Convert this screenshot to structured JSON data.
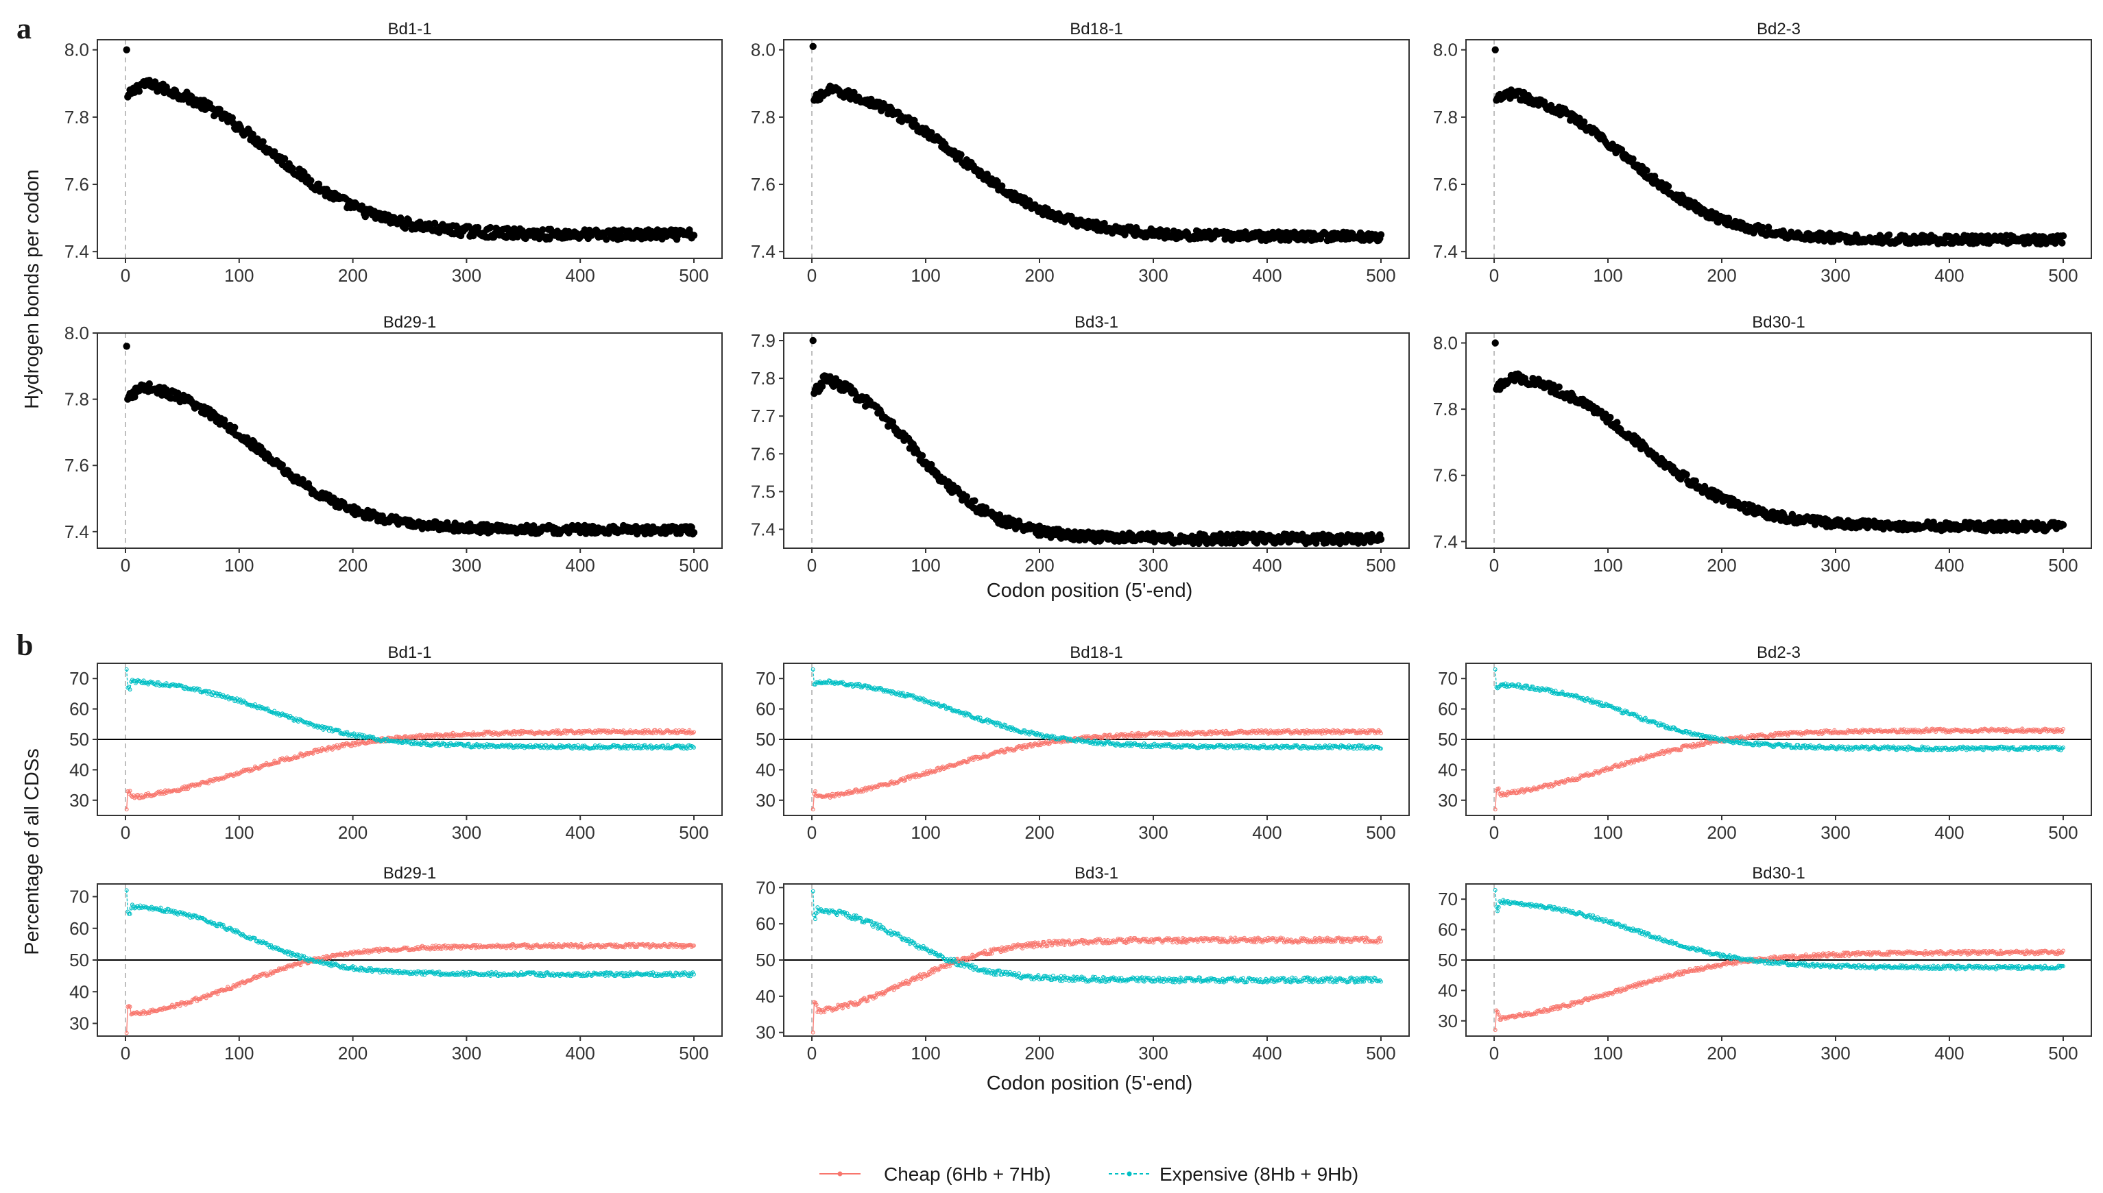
{
  "figure": {
    "panel_a_letter": "a",
    "panel_b_letter": "b",
    "panel_a_ylabel": "Hydrogen bonds per codon",
    "panel_b_ylabel": "Percentage of all CDSs",
    "xlabel": "Codon position (5'-end)"
  },
  "colors": {
    "points_a": "#000000",
    "cheap": "#F8766D",
    "expensive": "#00BFC4",
    "reference_line": "#000000",
    "dashed_line": "#BEBEBE",
    "frame": "#333333"
  },
  "legend": {
    "cheap_label": "Cheap (6Hb + 7Hb)",
    "expensive_label": "Expensive (8Hb + 9Hb)"
  },
  "chart_data": [
    {
      "panel": "a",
      "title": "Bd1-1",
      "type": "scatter",
      "x_range": [
        0,
        500
      ],
      "xticks": [
        0,
        100,
        200,
        300,
        400,
        500
      ],
      "ylim": [
        7.38,
        8.03
      ],
      "yticks": [
        7.4,
        7.6,
        7.8,
        8.0
      ],
      "ytick_labels": [
        "7.4",
        "7.6",
        "7.8",
        "8.0"
      ],
      "curve": {
        "start": 8.0,
        "second": 7.86,
        "peak": 7.9,
        "peak_x": 15,
        "plateau": 7.45,
        "mid": 130,
        "width": 45,
        "noise": 0.015
      },
      "dashed_x": 0
    },
    {
      "panel": "a",
      "title": "Bd18-1",
      "type": "scatter",
      "x_range": [
        0,
        500
      ],
      "xticks": [
        0,
        100,
        200,
        300,
        400,
        500
      ],
      "ylim": [
        7.38,
        8.03
      ],
      "yticks": [
        7.4,
        7.6,
        7.8,
        8.0
      ],
      "ytick_labels": [
        "7.4",
        "7.6",
        "7.8",
        "8.0"
      ],
      "curve": {
        "start": 8.01,
        "second": 7.85,
        "peak": 7.88,
        "peak_x": 15,
        "plateau": 7.445,
        "mid": 130,
        "width": 45,
        "noise": 0.013
      },
      "dashed_x": 0
    },
    {
      "panel": "a",
      "title": "Bd2-3",
      "type": "scatter",
      "x_range": [
        0,
        500
      ],
      "xticks": [
        0,
        100,
        200,
        300,
        400,
        500
      ],
      "ylim": [
        7.38,
        8.03
      ],
      "yticks": [
        7.4,
        7.6,
        7.8,
        8.0
      ],
      "ytick_labels": [
        "7.4",
        "7.6",
        "7.8",
        "8.0"
      ],
      "curve": {
        "start": 8.0,
        "second": 7.85,
        "peak": 7.87,
        "peak_x": 15,
        "plateau": 7.435,
        "mid": 120,
        "width": 42,
        "noise": 0.013
      },
      "dashed_x": 0
    },
    {
      "panel": "a",
      "title": "Bd29-1",
      "type": "scatter",
      "x_range": [
        0,
        500
      ],
      "xticks": [
        0,
        100,
        200,
        300,
        400,
        500
      ],
      "ylim": [
        7.35,
        8.0
      ],
      "yticks": [
        7.4,
        7.6,
        7.8,
        8.0
      ],
      "ytick_labels": [
        "7.4",
        "7.6",
        "7.8",
        "8.0"
      ],
      "curve": {
        "start": 7.96,
        "second": 7.8,
        "peak": 7.84,
        "peak_x": 15,
        "plateau": 7.405,
        "mid": 120,
        "width": 42,
        "noise": 0.013
      },
      "dashed_x": 0
    },
    {
      "panel": "a",
      "title": "Bd3-1",
      "type": "scatter",
      "x_range": [
        0,
        500
      ],
      "xticks": [
        0,
        100,
        200,
        300,
        400,
        500
      ],
      "ylim": [
        7.35,
        7.92
      ],
      "yticks": [
        7.4,
        7.5,
        7.6,
        7.7,
        7.8,
        7.9
      ],
      "ytick_labels": [
        "7.4",
        "7.5",
        "7.6",
        "7.7",
        "7.8",
        "7.9"
      ],
      "curve": {
        "start": 7.9,
        "second": 7.76,
        "peak": 7.8,
        "peak_x": 12,
        "plateau": 7.375,
        "mid": 90,
        "width": 36,
        "noise": 0.013
      },
      "dashed_x": 0
    },
    {
      "panel": "a",
      "title": "Bd30-1",
      "type": "scatter",
      "x_range": [
        0,
        500
      ],
      "xticks": [
        0,
        100,
        200,
        300,
        400,
        500
      ],
      "ylim": [
        7.38,
        8.03
      ],
      "yticks": [
        7.4,
        7.6,
        7.8,
        8.0
      ],
      "ytick_labels": [
        "7.4",
        "7.6",
        "7.8",
        "8.0"
      ],
      "curve": {
        "start": 8.0,
        "second": 7.86,
        "peak": 7.9,
        "peak_x": 15,
        "plateau": 7.445,
        "mid": 130,
        "width": 45,
        "noise": 0.013
      },
      "dashed_x": 0
    },
    {
      "panel": "b",
      "title": "Bd1-1",
      "type": "line",
      "x_range": [
        0,
        500
      ],
      "xticks": [
        0,
        100,
        200,
        300,
        400,
        500
      ],
      "ylim": [
        25,
        75
      ],
      "yticks": [
        30,
        40,
        50,
        60,
        70
      ],
      "ytick_labels": [
        "30",
        "40",
        "50",
        "60",
        "70"
      ],
      "reference_y": 50,
      "dashed_x": 0,
      "series": [
        {
          "name": "Cheap (6Hb + 7Hb)",
          "start": 27,
          "second": 33,
          "early": 31,
          "plateau": 52.5,
          "mid": 110,
          "width": 55,
          "noise": 0.6
        },
        {
          "name": "Expensive (8Hb + 9Hb)",
          "start": 73,
          "second": 67,
          "early": 69,
          "plateau": 47.5,
          "mid": 130,
          "width": 45,
          "noise": 0.6
        }
      ]
    },
    {
      "panel": "b",
      "title": "Bd18-1",
      "type": "line",
      "x_range": [
        0,
        500
      ],
      "xticks": [
        0,
        100,
        200,
        300,
        400,
        500
      ],
      "ylim": [
        25,
        75
      ],
      "yticks": [
        30,
        40,
        50,
        60,
        70
      ],
      "ytick_labels": [
        "30",
        "40",
        "50",
        "60",
        "70"
      ],
      "reference_y": 50,
      "dashed_x": 0,
      "series": [
        {
          "name": "Cheap (6Hb + 7Hb)",
          "start": 27,
          "second": 32,
          "early": 31,
          "plateau": 52.5,
          "mid": 110,
          "width": 55,
          "noise": 0.6
        },
        {
          "name": "Expensive (8Hb + 9Hb)",
          "start": 73,
          "second": 68,
          "early": 69,
          "plateau": 47.5,
          "mid": 130,
          "width": 45,
          "noise": 0.6
        }
      ]
    },
    {
      "panel": "b",
      "title": "Bd2-3",
      "type": "line",
      "x_range": [
        0,
        500
      ],
      "xticks": [
        0,
        100,
        200,
        300,
        400,
        500
      ],
      "ylim": [
        25,
        75
      ],
      "yticks": [
        30,
        40,
        50,
        60,
        70
      ],
      "ytick_labels": [
        "30",
        "40",
        "50",
        "60",
        "70"
      ],
      "reference_y": 50,
      "dashed_x": 0,
      "series": [
        {
          "name": "Cheap (6Hb + 7Hb)",
          "start": 27,
          "second": 33,
          "early": 32,
          "plateau": 53,
          "mid": 105,
          "width": 52,
          "noise": 0.6
        },
        {
          "name": "Expensive (8Hb + 9Hb)",
          "start": 73,
          "second": 67,
          "early": 68,
          "plateau": 47,
          "mid": 120,
          "width": 42,
          "noise": 0.6
        }
      ]
    },
    {
      "panel": "b",
      "title": "Bd29-1",
      "type": "line",
      "x_range": [
        0,
        500
      ],
      "xticks": [
        0,
        100,
        200,
        300,
        400,
        500
      ],
      "ylim": [
        26,
        74
      ],
      "yticks": [
        30,
        40,
        50,
        60,
        70
      ],
      "ytick_labels": [
        "30",
        "40",
        "50",
        "60",
        "70"
      ],
      "reference_y": 50,
      "dashed_x": 0,
      "series": [
        {
          "name": "Cheap (6Hb + 7Hb)",
          "start": 27,
          "second": 35,
          "early": 33,
          "plateau": 54.5,
          "mid": 100,
          "width": 45,
          "noise": 0.6
        },
        {
          "name": "Expensive (8Hb + 9Hb)",
          "start": 72,
          "second": 65,
          "early": 67,
          "plateau": 45.5,
          "mid": 110,
          "width": 38,
          "noise": 0.6
        }
      ]
    },
    {
      "panel": "b",
      "title": "Bd3-1",
      "type": "line",
      "x_range": [
        0,
        500
      ],
      "xticks": [
        0,
        100,
        200,
        300,
        400,
        500
      ],
      "ylim": [
        29,
        71
      ],
      "yticks": [
        30,
        40,
        50,
        60,
        70
      ],
      "ytick_labels": [
        "30",
        "40",
        "50",
        "60",
        "70"
      ],
      "reference_y": 50,
      "dashed_x": 0,
      "series": [
        {
          "name": "Cheap (6Hb + 7Hb)",
          "start": 30,
          "second": 38,
          "early": 36,
          "plateau": 55.5,
          "mid": 90,
          "width": 38,
          "noise": 0.7
        },
        {
          "name": "Expensive (8Hb + 9Hb)",
          "start": 69,
          "second": 62,
          "early": 64,
          "plateau": 44.5,
          "mid": 85,
          "width": 34,
          "noise": 0.7
        }
      ]
    },
    {
      "panel": "b",
      "title": "Bd30-1",
      "type": "line",
      "x_range": [
        0,
        500
      ],
      "xticks": [
        0,
        100,
        200,
        300,
        400,
        500
      ],
      "ylim": [
        25,
        75
      ],
      "yticks": [
        30,
        40,
        50,
        60,
        70
      ],
      "ytick_labels": [
        "30",
        "40",
        "50",
        "60",
        "70"
      ],
      "reference_y": 50,
      "dashed_x": 0,
      "series": [
        {
          "name": "Cheap (6Hb + 7Hb)",
          "start": 27,
          "second": 33,
          "early": 31,
          "plateau": 52.5,
          "mid": 110,
          "width": 55,
          "noise": 0.6
        },
        {
          "name": "Expensive (8Hb + 9Hb)",
          "start": 73,
          "second": 67,
          "early": 69,
          "plateau": 47.5,
          "mid": 130,
          "width": 45,
          "noise": 0.6
        }
      ]
    }
  ]
}
